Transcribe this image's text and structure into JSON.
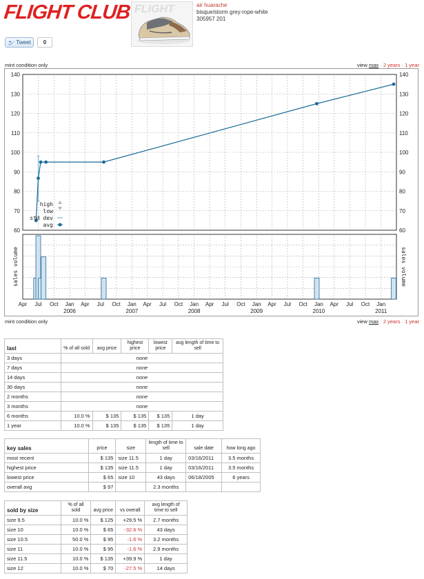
{
  "header": {
    "logo_text": "FLIGHT CLUB",
    "product_name": "air huarache",
    "product_colorway": "bisque/storm grey-rope-white",
    "product_code": "305957 201",
    "shoe_image_label": "FLIGHT"
  },
  "social": {
    "tweet_label": "Tweet",
    "tweet_count": "0"
  },
  "chart_controls": {
    "condition_label": "mint condition only",
    "view_label": "view",
    "view_max": "max",
    "sep": "·",
    "view_2years": "2 years",
    "view_1year": "1 year"
  },
  "chart_data": {
    "type": "line",
    "ylim": [
      60,
      140
    ],
    "yticks": [
      "60",
      "70",
      "80",
      "90",
      "100",
      "110",
      "120",
      "130",
      "140"
    ],
    "month_labels": [
      "Apr",
      "Jul",
      "Oct",
      "Jan",
      "Apr",
      "Jul",
      "Oct",
      "Jan",
      "Apr",
      "Jul",
      "Oct",
      "Jan",
      "Apr",
      "Jul",
      "Oct",
      "Jan",
      "Apr",
      "Jul",
      "Oct",
      "Jan",
      "Apr",
      "Jul",
      "Oct",
      "Jan"
    ],
    "year_labels": [
      "2006",
      "2007",
      "2008",
      "2009",
      "2010",
      "2011"
    ],
    "volume_label": "sales volume",
    "legend": [
      "high",
      "low",
      "std dev",
      "avg"
    ],
    "avg_series": {
      "name": "avg",
      "points": [
        {
          "x": "2005-06-18",
          "y": 65
        },
        {
          "x": "2005-07-01",
          "y": 86.7
        },
        {
          "x": "2005-07-15",
          "y": 95
        },
        {
          "x": "2005-08-15",
          "y": 95
        },
        {
          "x": "2006-07-20",
          "y": 95
        },
        {
          "x": "2009-12-20",
          "y": 125
        },
        {
          "x": "2011-03-16",
          "y": 135
        }
      ]
    },
    "std_dev_bar": {
      "x": "2005-07-01",
      "low": 75,
      "high": 98
    },
    "volume_bars": [
      {
        "x": "2005-06-18",
        "v": 1
      },
      {
        "x": "2005-07-01",
        "v": 3
      },
      {
        "x": "2005-07-15",
        "v": 1
      },
      {
        "x": "2005-08-01",
        "v": 2
      },
      {
        "x": "2006-07-20",
        "v": 1
      },
      {
        "x": "2009-12-20",
        "v": 1
      },
      {
        "x": "2011-03-16",
        "v": 1
      }
    ],
    "colors": {
      "avg": "#1a6a9a",
      "bar": "#cfe3ef",
      "bar_border": "#2a6a9a",
      "grid": "#aaaaaa"
    }
  },
  "table_last": {
    "headers": [
      "last",
      "% of all sold",
      "avg price",
      "highest price",
      "lowest price",
      "avg length of time to sell"
    ],
    "rows": [
      {
        "label": "3 days",
        "none": "none"
      },
      {
        "label": "7 days",
        "none": "none"
      },
      {
        "label": "14 days",
        "none": "none"
      },
      {
        "label": "30 days",
        "none": "none"
      },
      {
        "label": "2 months",
        "none": "none"
      },
      {
        "label": "3 months",
        "none": "none"
      },
      {
        "label": "6 months",
        "pct": "10.0 %",
        "avg": "$ 135",
        "high": "$ 135",
        "low": "$ 135",
        "time": "1 day"
      },
      {
        "label": "1 year",
        "pct": "10.0 %",
        "avg": "$ 135",
        "high": "$ 135",
        "low": "$ 135",
        "time": "1 day"
      }
    ]
  },
  "table_key_sales": {
    "headers": [
      "key sales",
      "price",
      "size",
      "length of time to sell",
      "sale date",
      "how long ago"
    ],
    "rows": [
      {
        "label": "most recent",
        "price": "$ 135",
        "size": "size 11.5",
        "time": "1 day",
        "date": "03/16/2011",
        "ago": "3.5 months"
      },
      {
        "label": "highest price",
        "price": "$ 135",
        "size": "size 11.5",
        "time": "1 day",
        "date": "03/16/2011",
        "ago": "3.5 months"
      },
      {
        "label": "lowest price",
        "price": "$ 65",
        "size": "size 10",
        "time": "43 days",
        "date": "06/18/2005",
        "ago": "6 years"
      },
      {
        "label": "overall avg",
        "price": "$ 97",
        "size": "",
        "time": "2.3 months",
        "date": "",
        "ago": ""
      }
    ]
  },
  "table_sizes": {
    "headers": [
      "sold by size",
      "% of all sold",
      "avg price",
      "vs overall",
      "avg length of time to sell"
    ],
    "rows": [
      {
        "label": "size 9.5",
        "pct": "10.0 %",
        "avg": "$ 125",
        "vs": "+29.5 %",
        "neg": false,
        "time": "2.7 months"
      },
      {
        "label": "size 10",
        "pct": "10.0 %",
        "avg": "$ 65",
        "vs": "-32.6 %",
        "neg": true,
        "time": "43 days"
      },
      {
        "label": "size 10.5",
        "pct": "50.0 %",
        "avg": "$ 95",
        "vs": "-1.6 %",
        "neg": true,
        "time": "3.2 months"
      },
      {
        "label": "size 11",
        "pct": "10.0 %",
        "avg": "$ 95",
        "vs": "-1.6 %",
        "neg": true,
        "time": "2.9 months"
      },
      {
        "label": "size 11.5",
        "pct": "10.0 %",
        "avg": "$ 135",
        "vs": "+39.9 %",
        "neg": false,
        "time": "1 day"
      },
      {
        "label": "size 12",
        "pct": "10.0 %",
        "avg": "$ 70",
        "vs": "-27.5 %",
        "neg": true,
        "time": "14 days"
      }
    ]
  }
}
